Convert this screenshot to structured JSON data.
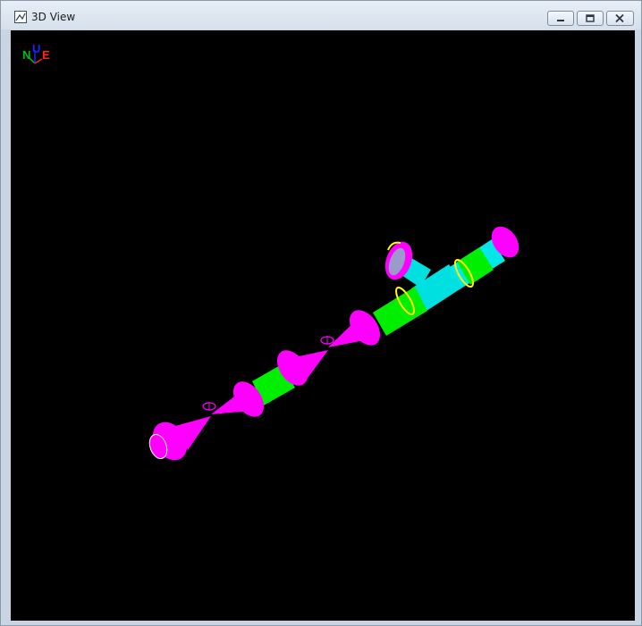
{
  "window": {
    "title": "3D View"
  },
  "axis_triad": {
    "north": "N",
    "up": "U",
    "east": "E"
  },
  "colors": {
    "viewport_bg": "#000000",
    "reducer_flange": "#ff00ff",
    "straight_pipe": "#00ff00",
    "tee_branch": "#00ffff",
    "weld_ring": "#ffff00",
    "north_axis": "#00c000",
    "up_axis": "#2020ff",
    "east_axis": "#ff2020"
  },
  "icons": {
    "app": "3d-view-icon",
    "minimize": "minimize-icon",
    "restore": "restore-icon",
    "close": "close-icon"
  }
}
